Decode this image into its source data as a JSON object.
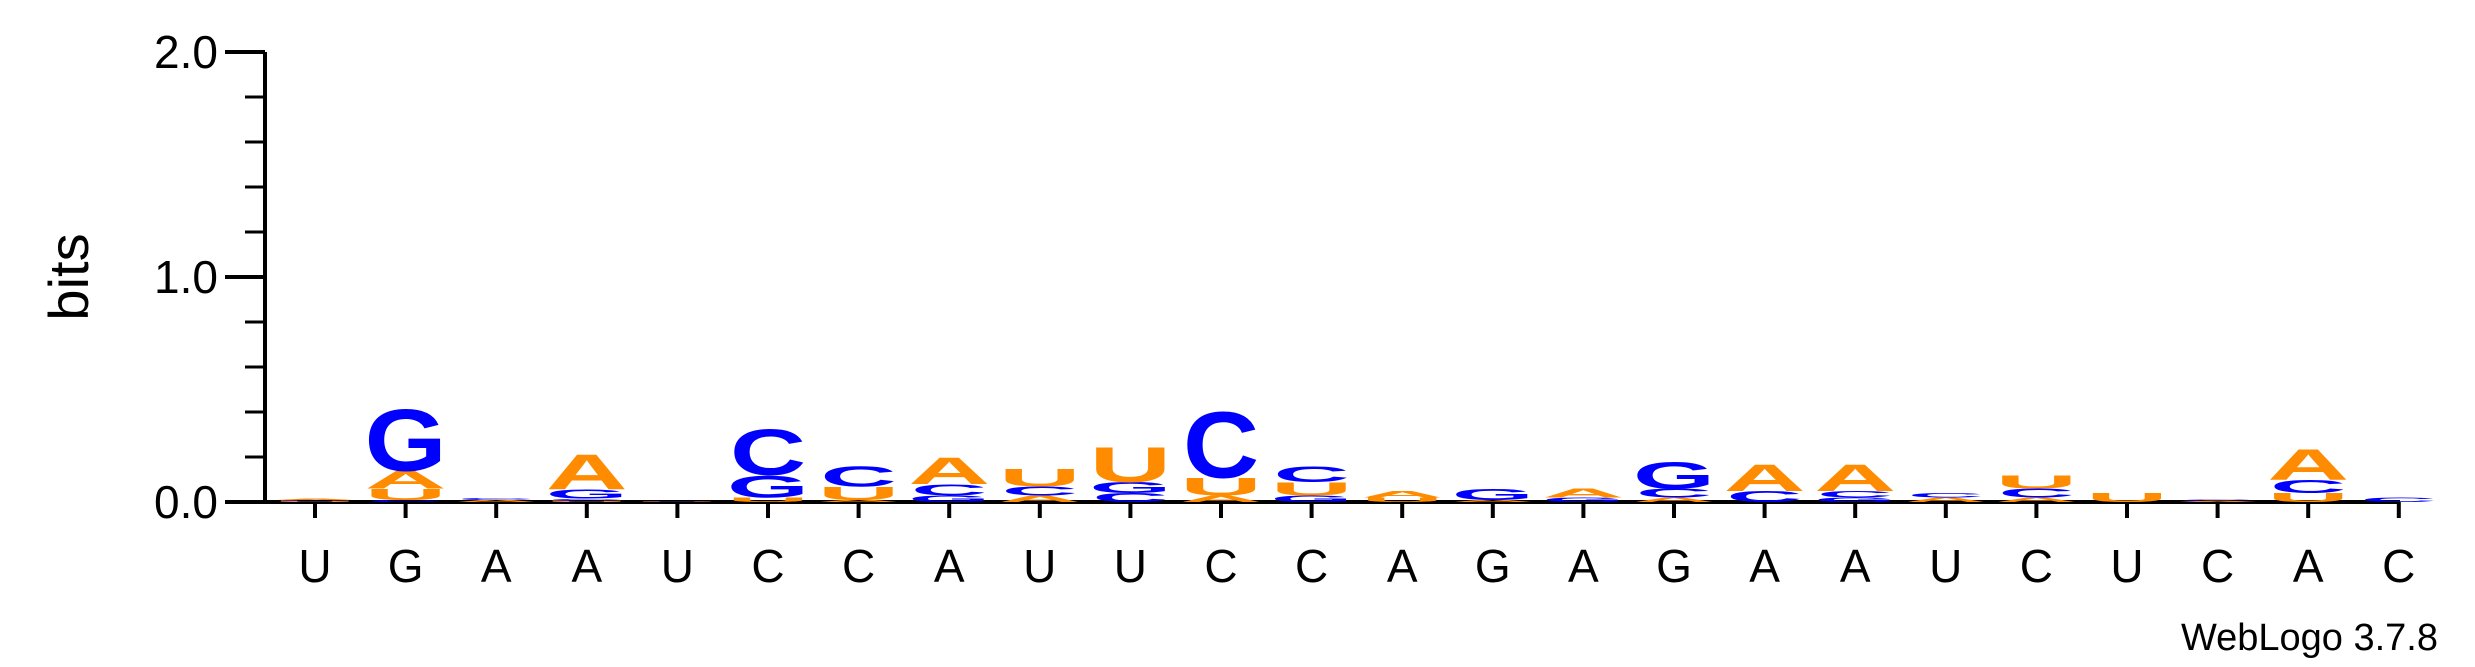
{
  "chart_data": {
    "type": "sequence-logo",
    "title": "",
    "xlabel": "",
    "ylabel": "bits",
    "ylim": [
      0,
      2.0
    ],
    "y_ticks": [
      "0.0",
      "1.0",
      "2.0"
    ],
    "consensus": [
      "U",
      "G",
      "A",
      "A",
      "U",
      "C",
      "C",
      "A",
      "U",
      "U",
      "C",
      "C",
      "A",
      "G",
      "A",
      "G",
      "A",
      "A",
      "U",
      "C",
      "U",
      "C",
      "A",
      "C"
    ],
    "colors": {
      "A": "#ff8c00",
      "U": "#ff8c00",
      "G": "#0000ff",
      "C": "#0000ff"
    },
    "stacks": [
      [
        [
          "U",
          0.005
        ],
        [
          "C",
          0.005
        ],
        [
          "A",
          0.005
        ]
      ],
      [
        [
          "C",
          0.01
        ],
        [
          "U",
          0.05
        ],
        [
          "A",
          0.08
        ],
        [
          "G",
          0.28
        ]
      ],
      [
        [
          "A",
          0.01
        ],
        [
          "C",
          0.01
        ]
      ],
      [
        [
          "U",
          0.005
        ],
        [
          "C",
          0.01
        ],
        [
          "G",
          0.04
        ],
        [
          "A",
          0.16
        ]
      ],
      [
        [
          "U",
          0.003
        ],
        [
          "C",
          0.003
        ]
      ],
      [
        [
          "U",
          0.02
        ],
        [
          "G",
          0.1
        ],
        [
          "C",
          0.21
        ]
      ],
      [
        [
          "A",
          0.01
        ],
        [
          "U",
          0.06
        ],
        [
          "C",
          0.09
        ]
      ],
      [
        [
          "G",
          0.03
        ],
        [
          "C",
          0.05
        ],
        [
          "A",
          0.12
        ]
      ],
      [
        [
          "A",
          0.03
        ],
        [
          "C",
          0.04
        ],
        [
          "U",
          0.08
        ]
      ],
      [
        [
          "C",
          0.04
        ],
        [
          "G",
          0.05
        ],
        [
          "U",
          0.16
        ]
      ],
      [
        [
          "A",
          0.03
        ],
        [
          "U",
          0.08
        ],
        [
          "C",
          0.3
        ]
      ],
      [
        [
          "G",
          0.03
        ],
        [
          "U",
          0.06
        ],
        [
          "C",
          0.07
        ]
      ],
      [
        [
          "U",
          0.02
        ],
        [
          "A",
          0.03
        ]
      ],
      [
        [
          "A",
          0.01
        ],
        [
          "G",
          0.05
        ]
      ],
      [
        [
          "G",
          0.02
        ],
        [
          "A",
          0.04
        ]
      ],
      [
        [
          "A",
          0.02
        ],
        [
          "C",
          0.04
        ],
        [
          "G",
          0.12
        ]
      ],
      [
        [
          "C",
          0.05
        ],
        [
          "A",
          0.12
        ]
      ],
      [
        [
          "G",
          0.02
        ],
        [
          "C",
          0.03
        ],
        [
          "A",
          0.12
        ]
      ],
      [
        [
          "A",
          0.02
        ],
        [
          "C",
          0.02
        ]
      ],
      [
        [
          "A",
          0.02
        ],
        [
          "C",
          0.04
        ],
        [
          "U",
          0.06
        ]
      ],
      [
        [
          "U",
          0.04
        ]
      ],
      [
        [
          "A",
          0.005
        ],
        [
          "C",
          0.005
        ]
      ],
      [
        [
          "U",
          0.04
        ],
        [
          "C",
          0.06
        ],
        [
          "A",
          0.14
        ]
      ],
      [
        [
          "C",
          0.02
        ]
      ]
    ],
    "credit": "WebLogo 3.7.8"
  }
}
